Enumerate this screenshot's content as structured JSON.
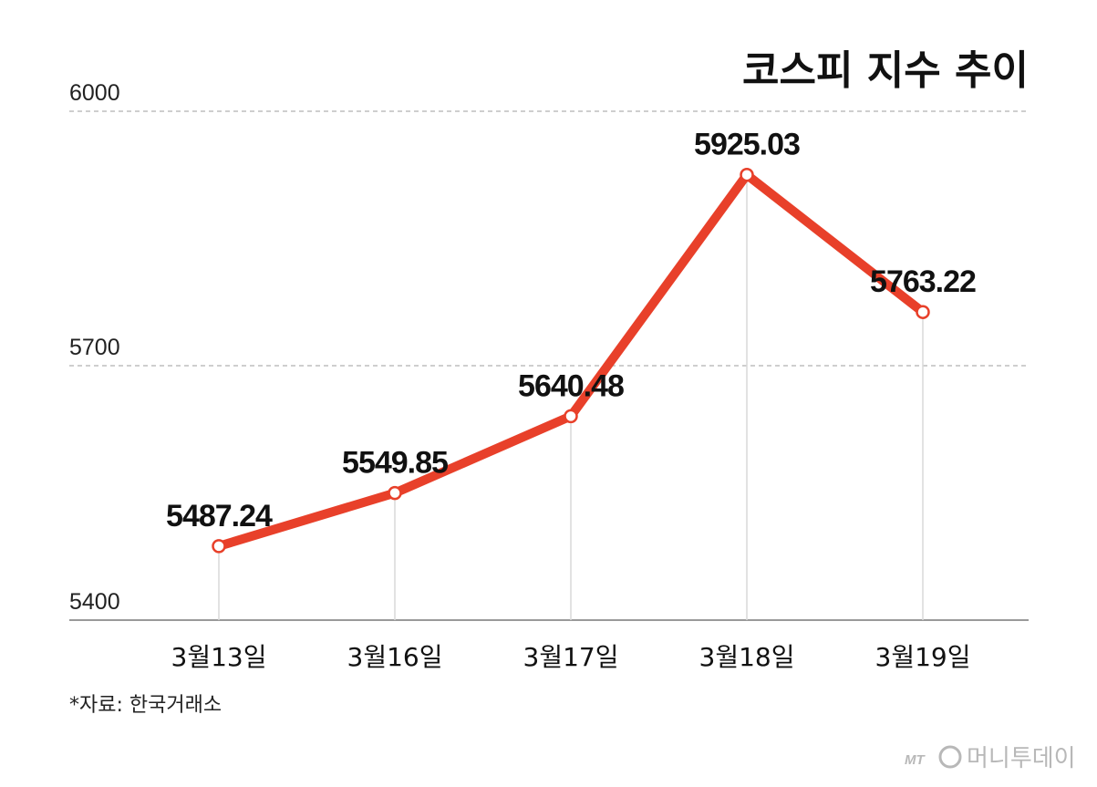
{
  "chart_data": {
    "type": "line",
    "title": "코스피 지수 추이",
    "categories": [
      "3월13일",
      "3월16일",
      "3월17일",
      "3월18일",
      "3월19일"
    ],
    "values": [
      5487.24,
      5549.85,
      5640.48,
      5925.03,
      5763.22
    ],
    "data_labels": [
      "5487.24",
      "5549.85",
      "5640.48",
      "5925.03",
      "5763.22"
    ],
    "ylim": [
      5400,
      6000
    ],
    "yticks": [
      5400,
      5700,
      6000
    ],
    "ytick_labels": [
      "5400",
      "5700",
      "6000"
    ],
    "xlabel": "",
    "ylabel": "",
    "grid": true,
    "legend": "none"
  },
  "source_note": "*자료: 한국거래소",
  "watermark": {
    "mark": "MT",
    "text": "머니투데이"
  },
  "colors": {
    "line": "#e8402a",
    "grid": "#bdbdbd",
    "axis": "#9a9a9a",
    "drop_line": "#d9d9d9",
    "marker_fill": "#ffffff",
    "text": "#111111"
  }
}
